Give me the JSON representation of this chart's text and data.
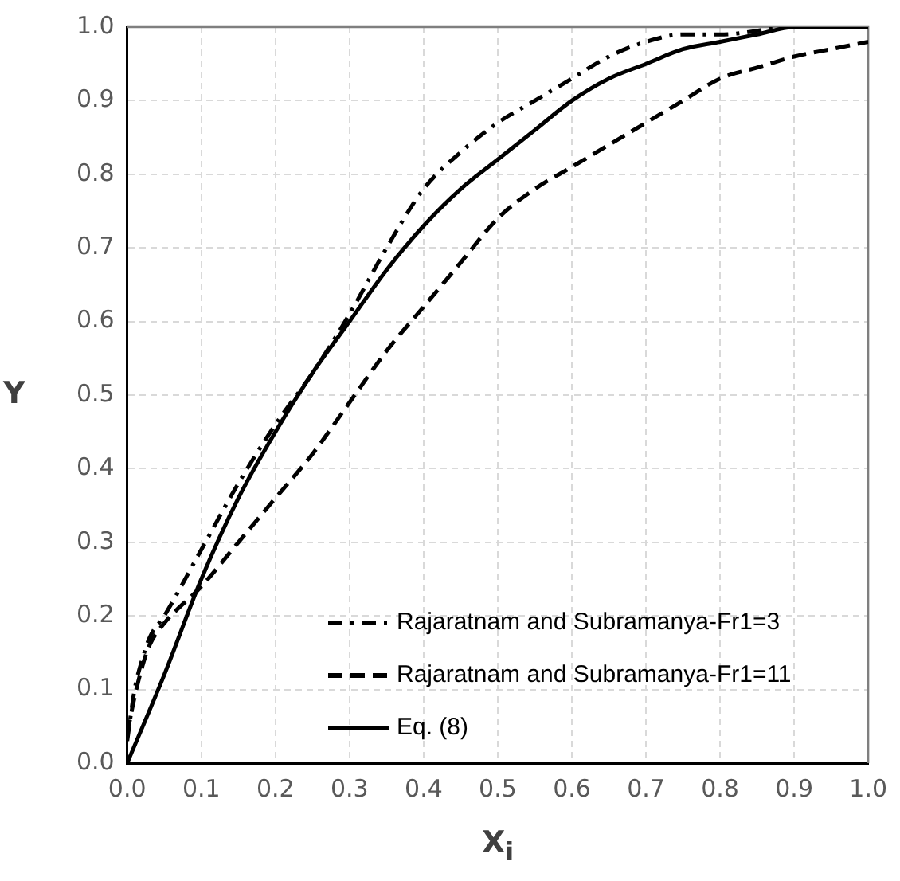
{
  "chart_data": {
    "type": "line",
    "xlabel": "X$_{i}$",
    "ylabel": "Y",
    "xlim": [
      0,
      1
    ],
    "ylim": [
      0,
      1
    ],
    "xticks": [
      {
        "value": 0,
        "label": "0.0"
      },
      {
        "value": 0.1,
        "label": "0.1"
      },
      {
        "value": 0.2,
        "label": "0.2"
      },
      {
        "value": 0.3,
        "label": "0.3"
      },
      {
        "value": 0.4,
        "label": "0.4"
      },
      {
        "value": 0.5,
        "label": "0.5"
      },
      {
        "value": 0.6,
        "label": "0.6"
      },
      {
        "value": 0.7,
        "label": "0.7"
      },
      {
        "value": 0.8,
        "label": "0.8"
      },
      {
        "value": 0.9,
        "label": "0.9"
      },
      {
        "value": 1,
        "label": "1.0"
      }
    ],
    "yticks": [
      {
        "value": 0,
        "label": "0.0"
      },
      {
        "value": 0.1,
        "label": "0.1"
      },
      {
        "value": 0.2,
        "label": "0.2"
      },
      {
        "value": 0.3,
        "label": "0.3"
      },
      {
        "value": 0.4,
        "label": "0.4"
      },
      {
        "value": 0.5,
        "label": "0.5"
      },
      {
        "value": 0.6,
        "label": "0.6"
      },
      {
        "value": 0.7,
        "label": "0.7"
      },
      {
        "value": 0.8,
        "label": "0.8"
      },
      {
        "value": 0.9,
        "label": "0.9"
      },
      {
        "value": 1,
        "label": "1.0"
      }
    ],
    "grid": true,
    "legend": "bottom right",
    "marker": "none",
    "series": [
      {
        "name": "Rajaratnam and Subramanya-Fr1=3",
        "color": "#000000",
        "line_style": "dashdot",
        "x": [
          0,
          0.01,
          0.02,
          0.03,
          0.05,
          0.1,
          0.15,
          0.2,
          0.25,
          0.3,
          0.35,
          0.4,
          0.45,
          0.5,
          0.55,
          0.6,
          0.65,
          0.7,
          0.75,
          0.8,
          0.9,
          1
        ],
        "values": [
          0.03,
          0.1,
          0.14,
          0.17,
          0.2,
          0.29,
          0.38,
          0.46,
          0.53,
          0.61,
          0.7,
          0.78,
          0.83,
          0.87,
          0.9,
          0.93,
          0.96,
          0.98,
          0.99,
          0.99,
          1,
          1
        ]
      },
      {
        "name": "Rajaratnam and Subramanya-Fr1=11",
        "color": "#000000",
        "line_style": "dashed",
        "x": [
          0,
          0.01,
          0.02,
          0.03,
          0.05,
          0.1,
          0.15,
          0.2,
          0.25,
          0.3,
          0.35,
          0.4,
          0.45,
          0.5,
          0.55,
          0.6,
          0.65,
          0.7,
          0.75,
          0.8,
          0.85,
          0.9,
          0.95,
          1
        ],
        "values": [
          0.04,
          0.09,
          0.13,
          0.16,
          0.19,
          0.24,
          0.3,
          0.36,
          0.42,
          0.49,
          0.56,
          0.62,
          0.68,
          0.74,
          0.78,
          0.81,
          0.84,
          0.87,
          0.9,
          0.93,
          0.945,
          0.96,
          0.97,
          0.98
        ]
      },
      {
        "name": "Eq. (8)",
        "color": "#000000",
        "line_style": "solid",
        "x": [
          0,
          0.05,
          0.1,
          0.15,
          0.2,
          0.25,
          0.3,
          0.35,
          0.4,
          0.45,
          0.5,
          0.55,
          0.6,
          0.65,
          0.7,
          0.75,
          0.8,
          0.85,
          0.9,
          1
        ],
        "values": [
          0,
          0.12,
          0.25,
          0.36,
          0.45,
          0.53,
          0.6,
          0.67,
          0.73,
          0.78,
          0.82,
          0.86,
          0.9,
          0.93,
          0.95,
          0.97,
          0.98,
          0.99,
          1,
          1
        ]
      }
    ]
  }
}
